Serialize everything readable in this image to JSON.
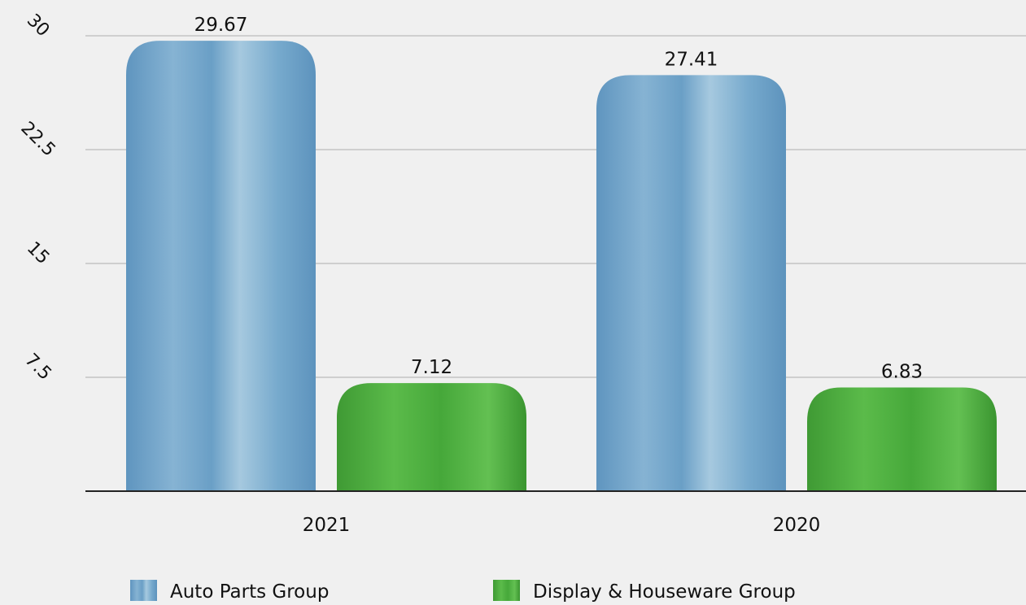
{
  "chart_data": {
    "type": "bar",
    "categories": [
      "2021",
      "2020"
    ],
    "series": [
      {
        "name": "Auto Parts Group",
        "values": [
          29.67,
          27.41
        ],
        "color": "#6fa3c8"
      },
      {
        "name": "Display & Houseware Group",
        "values": [
          7.12,
          6.83
        ],
        "color": "#4caf3a"
      }
    ],
    "y_ticks": [
      "7.5",
      "15",
      "22.5",
      "30"
    ],
    "ylim": [
      0,
      30
    ],
    "grid": true,
    "legend_position": "bottom",
    "data_labels": [
      [
        "29.67",
        "27.41"
      ],
      [
        "7.12",
        "6.83"
      ]
    ]
  }
}
